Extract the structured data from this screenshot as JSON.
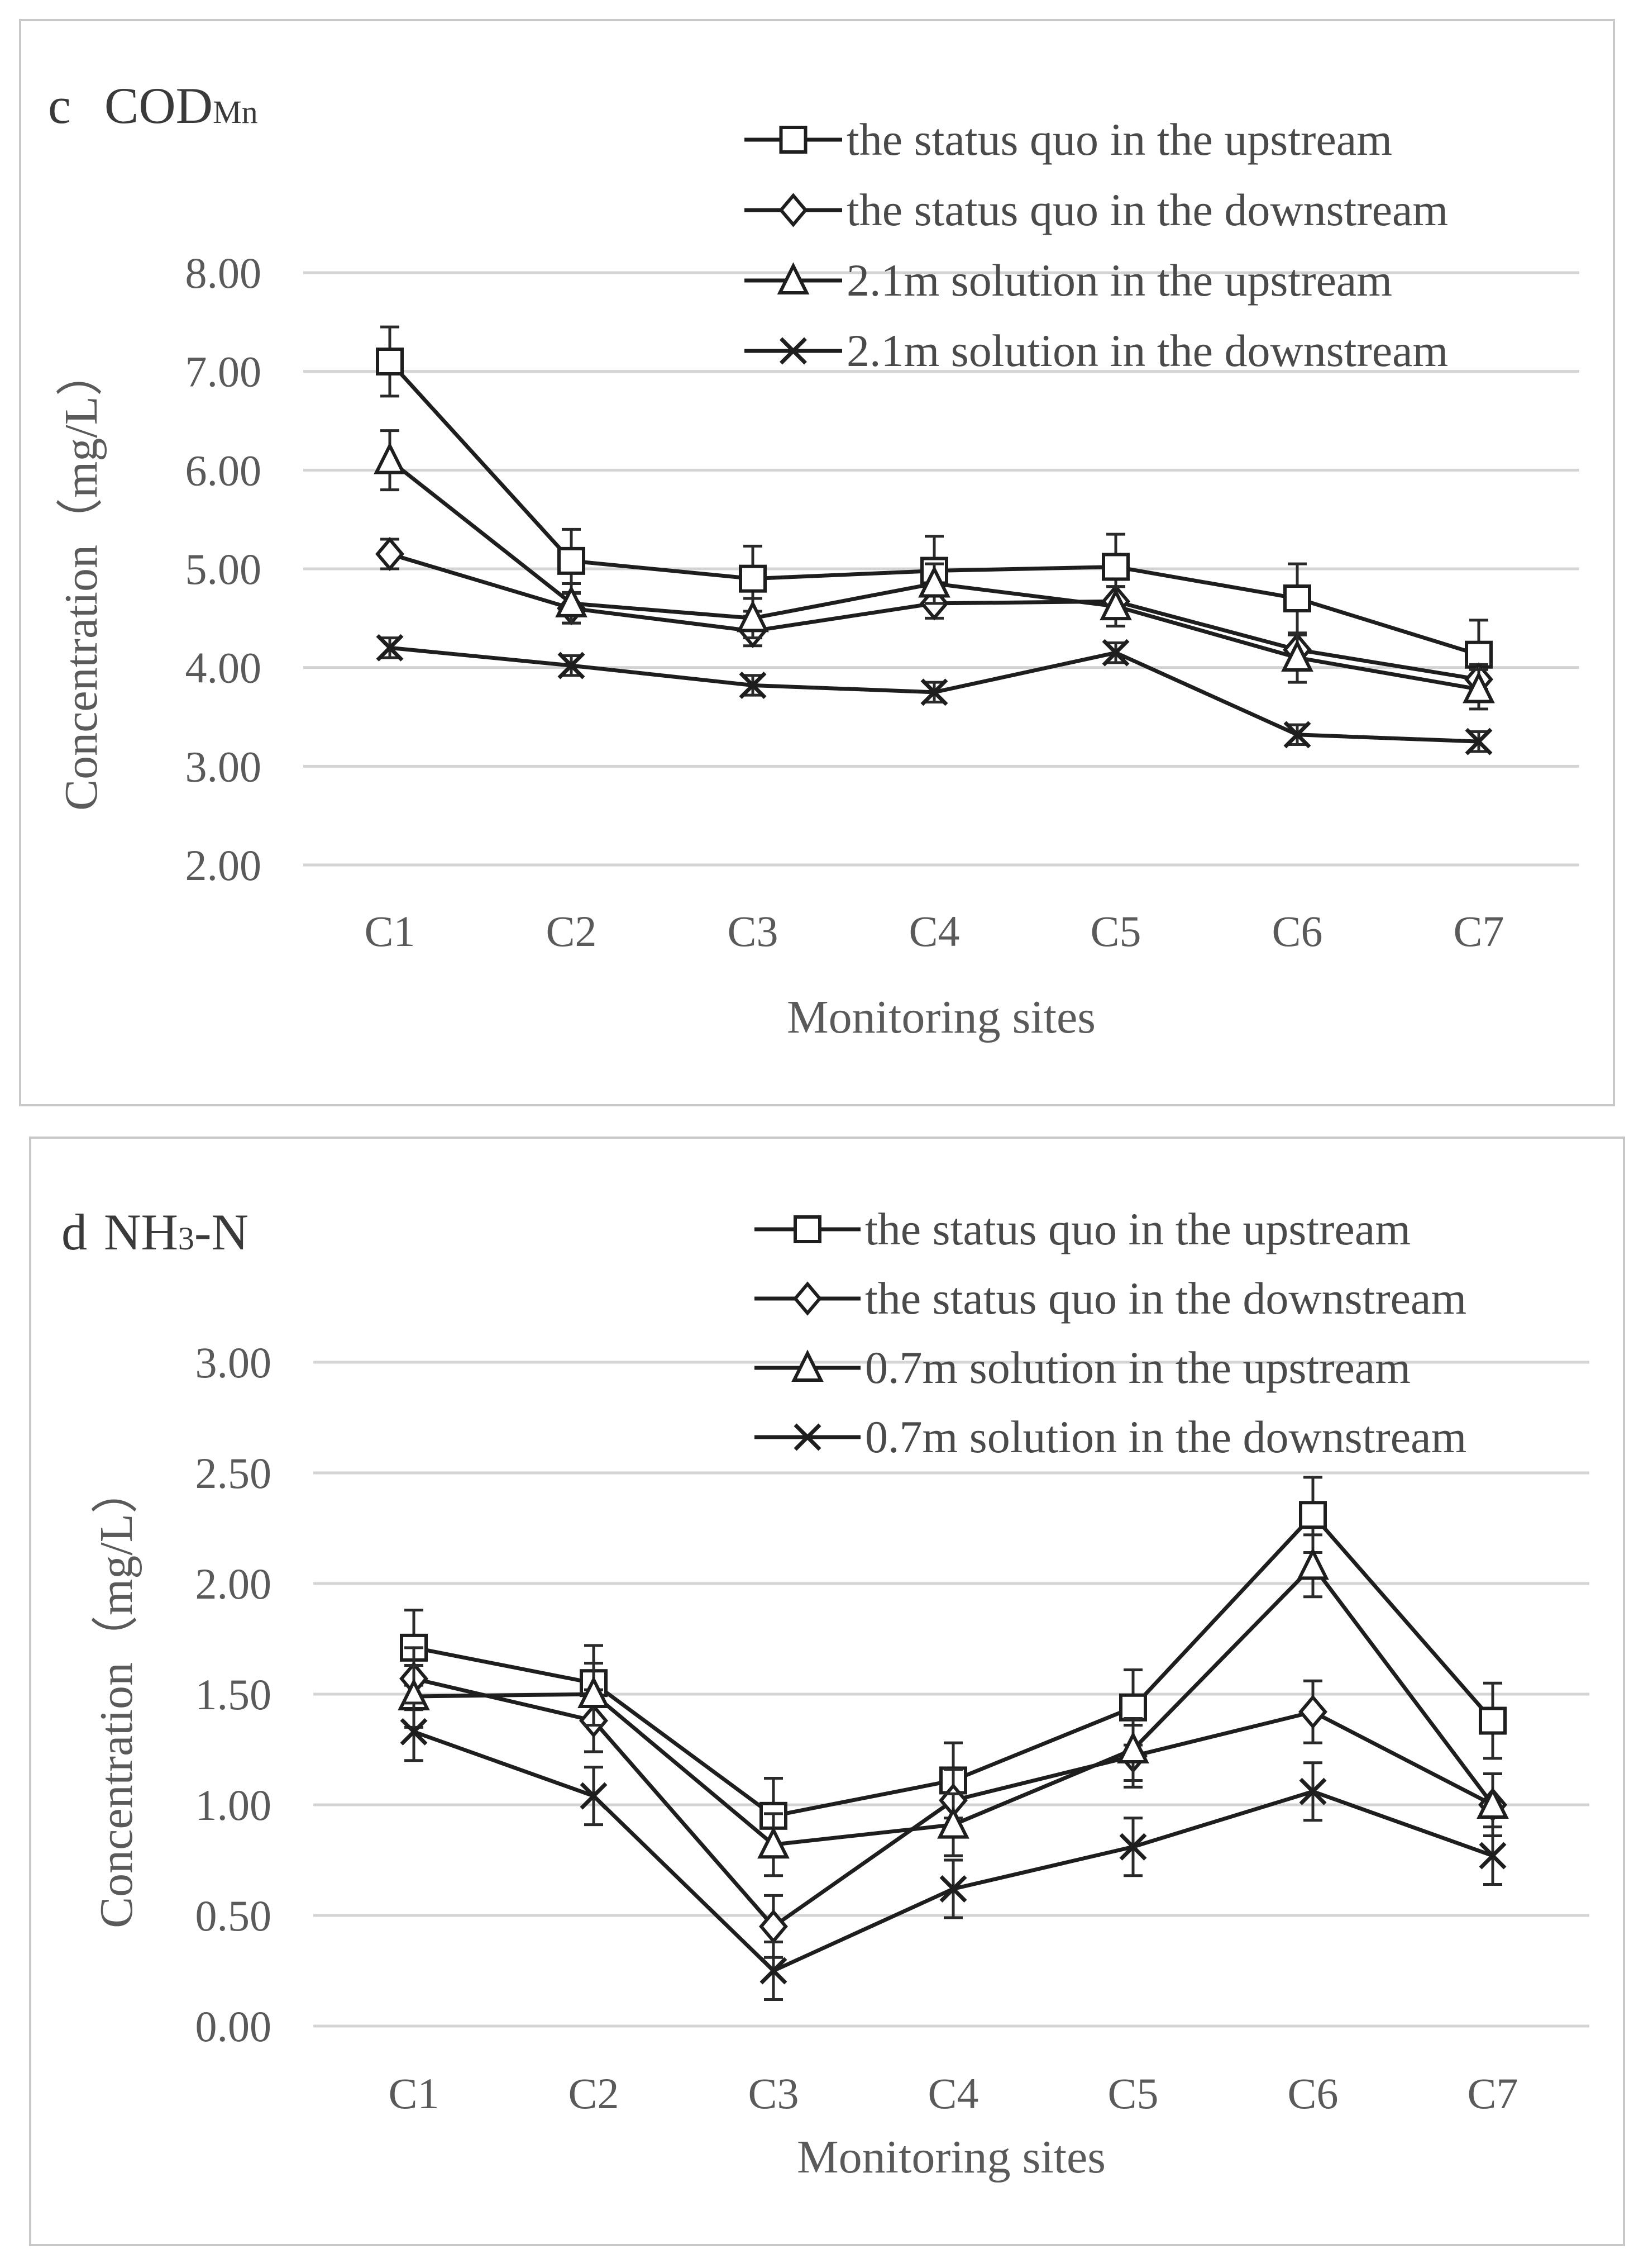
{
  "chart_data": [
    {
      "type": "line",
      "panel_letter": "c",
      "title_main": "COD",
      "title_sub": "Mn",
      "ylabel": "Concentration（mg/L）",
      "xlabel": "Monitoring sites",
      "categories": [
        "C1",
        "C2",
        "C3",
        "C4",
        "C5",
        "C6",
        "C7"
      ],
      "ylim": [
        2,
        8
      ],
      "yticks": [
        2,
        3,
        4,
        5,
        6,
        7,
        8
      ],
      "ytick_labels": [
        "2.00",
        "3.00",
        "4.00",
        "5.00",
        "6.00",
        "7.00",
        "8.00"
      ],
      "grid": true,
      "legend_position": "top-right",
      "series": [
        {
          "name": "the status quo in the upstream",
          "marker": "square",
          "values": [
            7.1,
            5.08,
            4.9,
            4.98,
            5.02,
            4.7,
            4.13
          ],
          "error": [
            0.35,
            0.32,
            0.33,
            0.35,
            0.33,
            0.35,
            0.35
          ]
        },
        {
          "name": "the status quo in the downstream",
          "marker": "diamond",
          "values": [
            5.15,
            4.6,
            4.37,
            4.65,
            4.67,
            4.18,
            3.88
          ],
          "error": [
            0.15,
            0.15,
            0.15,
            0.15,
            0.15,
            0.15,
            0.15
          ]
        },
        {
          "name": "2.1m solution in the upstream",
          "marker": "triangle",
          "values": [
            6.1,
            4.65,
            4.5,
            4.85,
            4.62,
            4.1,
            3.78
          ],
          "error": [
            0.3,
            0.2,
            0.2,
            0.2,
            0.2,
            0.25,
            0.2
          ]
        },
        {
          "name": "2.1m solution in the downstream",
          "marker": "x",
          "values": [
            4.2,
            4.02,
            3.82,
            3.75,
            4.15,
            3.32,
            3.25
          ],
          "error": [
            0.1,
            0.1,
            0.1,
            0.1,
            0.1,
            0.1,
            0.1
          ]
        }
      ]
    },
    {
      "type": "line",
      "panel_letter": "d",
      "title_main": "NH",
      "title_sub": "3",
      "title_tail": "-N",
      "ylabel": "Concentration（mg/L）",
      "xlabel": "Monitoring sites",
      "categories": [
        "C1",
        "C2",
        "C3",
        "C4",
        "C5",
        "C6",
        "C7"
      ],
      "ylim": [
        0,
        3
      ],
      "yticks": [
        0,
        0.5,
        1,
        1.5,
        2,
        2.5,
        3
      ],
      "ytick_labels": [
        "0.00",
        "0.50",
        "1.00",
        "1.50",
        "2.00",
        "2.50",
        "3.00"
      ],
      "grid": true,
      "legend_position": "top-right",
      "series": [
        {
          "name": "the status quo in the upstream",
          "marker": "square",
          "values": [
            1.71,
            1.55,
            0.95,
            1.11,
            1.44,
            2.31,
            1.38
          ],
          "error": [
            0.17,
            0.17,
            0.17,
            0.17,
            0.17,
            0.17,
            0.17
          ]
        },
        {
          "name": "the status quo in the downstream",
          "marker": "diamond",
          "values": [
            1.57,
            1.38,
            0.45,
            1.02,
            1.22,
            1.42,
            1.0
          ],
          "error": [
            0.14,
            0.14,
            0.14,
            0.14,
            0.14,
            0.14,
            0.14
          ]
        },
        {
          "name": "0.7m solution in the upstream",
          "marker": "triangle",
          "values": [
            1.49,
            1.5,
            0.82,
            0.91,
            1.25,
            2.08,
            1.0
          ],
          "error": [
            0.14,
            0.14,
            0.14,
            0.14,
            0.14,
            0.14,
            0.14
          ]
        },
        {
          "name": "0.7m solution in the downstream",
          "marker": "x",
          "values": [
            1.33,
            1.04,
            0.25,
            0.62,
            0.81,
            1.06,
            0.77
          ],
          "error": [
            0.13,
            0.13,
            0.13,
            0.13,
            0.13,
            0.13,
            0.13
          ]
        }
      ]
    }
  ]
}
